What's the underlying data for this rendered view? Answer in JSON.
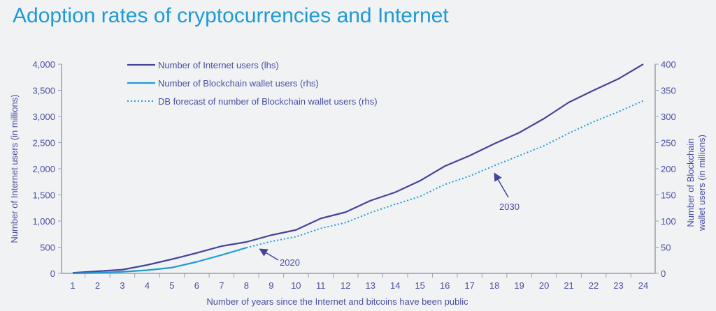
{
  "chart_data": {
    "type": "line",
    "title": "Adoption rates of cryptocurrencies and Internet",
    "xlabel": "Number of years since the Internet and bitcoins have been public",
    "ylabel_left": "Number of Internet users (in millions)",
    "ylabel_right": "Number of Blockchain wallet users (in millions)",
    "x": [
      1,
      2,
      3,
      4,
      5,
      6,
      7,
      8,
      9,
      10,
      11,
      12,
      13,
      14,
      15,
      16,
      17,
      18,
      19,
      20,
      21,
      22,
      23,
      24
    ],
    "ylim_left": [
      0,
      4000
    ],
    "ylim_right": [
      0,
      400
    ],
    "yticks_left": [
      "0",
      "500",
      "1,000",
      "1,500",
      "2,000",
      "2,500",
      "3,000",
      "3,500",
      "4,000"
    ],
    "yticks_right": [
      "0",
      "50",
      "100",
      "150",
      "200",
      "250",
      "300",
      "350",
      "400"
    ],
    "legend_position": "top-left",
    "series": [
      {
        "name": "Number of Internet users (lhs)",
        "axis": "left",
        "style": "solid",
        "color": "#46449a",
        "x": [
          1,
          2,
          3,
          4,
          5,
          6,
          7,
          8,
          9,
          10,
          11,
          12,
          13,
          14,
          15,
          16,
          17,
          18,
          19,
          20,
          21,
          22,
          23,
          24
        ],
        "values": [
          10,
          40,
          70,
          160,
          270,
          390,
          520,
          600,
          730,
          830,
          1050,
          1170,
          1390,
          1550,
          1770,
          2050,
          2250,
          2480,
          2690,
          2960,
          3270,
          3500,
          3720,
          4000
        ]
      },
      {
        "name": "Number of Blockchain wallet users (rhs)",
        "axis": "right",
        "style": "solid",
        "color": "#1e9ad6",
        "x": [
          1,
          2,
          3,
          4,
          5,
          6,
          7,
          8
        ],
        "values": [
          0,
          1,
          3,
          6,
          11,
          22,
          35,
          49
        ]
      },
      {
        "name": "DB forecast of number of Blockchain wallet users (rhs)",
        "axis": "right",
        "style": "dotted",
        "color": "#1e9ad6",
        "x": [
          8,
          9,
          10,
          11,
          12,
          13,
          14,
          15,
          16,
          17,
          18,
          19,
          20,
          21,
          22,
          23,
          24
        ],
        "values": [
          49,
          61,
          70,
          86,
          97,
          116,
          132,
          147,
          170,
          186,
          206,
          225,
          244,
          268,
          290,
          309,
          330
        ]
      }
    ],
    "annotations": [
      {
        "text": "2020",
        "x": 8.8,
        "axis": "right",
        "y": 57
      },
      {
        "text": "2030",
        "x": 18,
        "axis": "right",
        "y": 202
      }
    ],
    "grid": false
  }
}
